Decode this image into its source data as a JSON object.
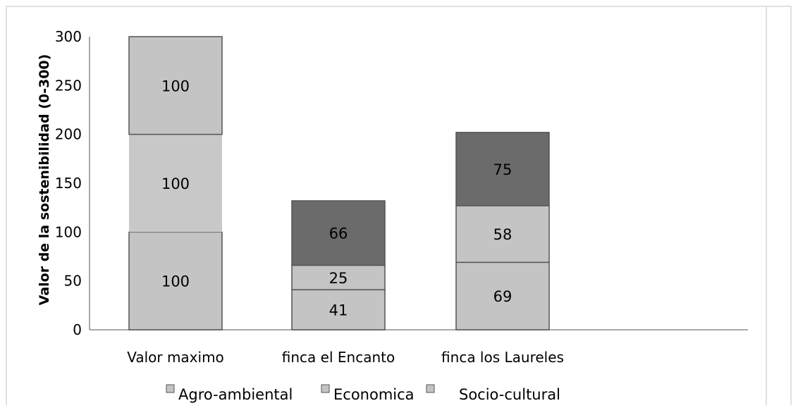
{
  "chart_data": {
    "type": "bar",
    "stacked": true,
    "categories": [
      "Valor maximo",
      "finca el Encanto",
      "finca los Laureles"
    ],
    "series": [
      {
        "name": "Agro-ambiental",
        "values": [
          100,
          41,
          69
        ],
        "color": "#c4c4c4"
      },
      {
        "name": "Economica",
        "values": [
          100,
          25,
          58
        ],
        "color": "#c4c4c4"
      },
      {
        "name": "Socio-cultural",
        "values": [
          100,
          66,
          75
        ],
        "color": "#6b6b6b"
      }
    ],
    "top_segment_colors": [
      "#c4c4c4",
      "#6b6b6b",
      "#6b6b6b"
    ],
    "middle_segment_colors": [
      "#c8c8c8",
      "#c4c4c4",
      "#c4c4c4"
    ],
    "title": "",
    "xlabel": "",
    "ylabel": "Valor de la sostenibilidad (0-300)",
    "ylim": [
      0,
      300
    ],
    "yticks": [
      0,
      50,
      100,
      150,
      200,
      250,
      300
    ],
    "grid": false,
    "legend_position": "bottom"
  }
}
